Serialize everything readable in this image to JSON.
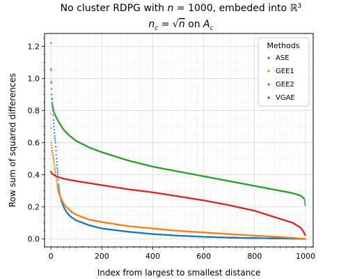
{
  "chart_data": {
    "type": "scatter",
    "title_line1": "No cluster RDPG with n = 1000, embeded into ℝ³",
    "title_line2": "n_c = √n on A_c",
    "xlabel": "Index from largest to smallest distance",
    "ylabel": "Row sum of squared differences",
    "xlim": [
      -25,
      1030
    ],
    "ylim": [
      -0.05,
      1.28
    ],
    "xticks": [
      0,
      200,
      400,
      600,
      800,
      1000
    ],
    "yticks": [
      0.0,
      0.2,
      0.4,
      0.6,
      0.8,
      1.0,
      1.2
    ],
    "grid": true,
    "legend": {
      "title": "Methods",
      "placement": "top-right"
    },
    "n_points": 1000,
    "series": [
      {
        "name": "ASE",
        "color": "#1f77b4",
        "points": [
          [
            0,
            1.22
          ],
          [
            1,
            1.05
          ],
          [
            2,
            0.98
          ],
          [
            3,
            0.9
          ],
          [
            5,
            0.84
          ],
          [
            8,
            0.8
          ],
          [
            10,
            0.74
          ],
          [
            12,
            0.7
          ],
          [
            15,
            0.64
          ],
          [
            18,
            0.6
          ],
          [
            20,
            0.55
          ],
          [
            22,
            0.5
          ],
          [
            25,
            0.44
          ],
          [
            28,
            0.4
          ],
          [
            30,
            0.34
          ],
          [
            35,
            0.28
          ],
          [
            40,
            0.24
          ],
          [
            50,
            0.2
          ],
          [
            60,
            0.17
          ],
          [
            70,
            0.15
          ],
          [
            80,
            0.135
          ],
          [
            100,
            0.115
          ],
          [
            150,
            0.085
          ],
          [
            200,
            0.065
          ],
          [
            300,
            0.045
          ],
          [
            400,
            0.03
          ],
          [
            500,
            0.02
          ],
          [
            600,
            0.013
          ],
          [
            700,
            0.008
          ],
          [
            800,
            0.005
          ],
          [
            900,
            0.003
          ],
          [
            1000,
            0.0
          ]
        ]
      },
      {
        "name": "GEE1",
        "color": "#ff7f0e",
        "points": [
          [
            0,
            0.78
          ],
          [
            2,
            0.6
          ],
          [
            5,
            0.55
          ],
          [
            8,
            0.52
          ],
          [
            12,
            0.48
          ],
          [
            15,
            0.44
          ],
          [
            20,
            0.39
          ],
          [
            25,
            0.33
          ],
          [
            30,
            0.29
          ],
          [
            40,
            0.25
          ],
          [
            50,
            0.22
          ],
          [
            60,
            0.2
          ],
          [
            80,
            0.17
          ],
          [
            100,
            0.15
          ],
          [
            150,
            0.12
          ],
          [
            200,
            0.105
          ],
          [
            300,
            0.08
          ],
          [
            400,
            0.065
          ],
          [
            500,
            0.05
          ],
          [
            600,
            0.04
          ],
          [
            700,
            0.03
          ],
          [
            800,
            0.02
          ],
          [
            900,
            0.012
          ],
          [
            1000,
            0.0
          ]
        ]
      },
      {
        "name": "GEE2",
        "color": "#2ca02c",
        "points": [
          [
            0,
            1.06
          ],
          [
            1,
            0.97
          ],
          [
            3,
            0.9
          ],
          [
            5,
            0.85
          ],
          [
            8,
            0.82
          ],
          [
            12,
            0.79
          ],
          [
            20,
            0.76
          ],
          [
            30,
            0.73
          ],
          [
            50,
            0.68
          ],
          [
            75,
            0.64
          ],
          [
            100,
            0.61
          ],
          [
            150,
            0.57
          ],
          [
            200,
            0.54
          ],
          [
            300,
            0.49
          ],
          [
            400,
            0.45
          ],
          [
            500,
            0.42
          ],
          [
            600,
            0.39
          ],
          [
            700,
            0.36
          ],
          [
            800,
            0.33
          ],
          [
            900,
            0.3
          ],
          [
            950,
            0.285
          ],
          [
            980,
            0.27
          ],
          [
            995,
            0.25
          ],
          [
            1000,
            0.2
          ]
        ]
      },
      {
        "name": "VGAE",
        "color": "#d62728",
        "points": [
          [
            0,
            0.42
          ],
          [
            5,
            0.405
          ],
          [
            10,
            0.4
          ],
          [
            20,
            0.39
          ],
          [
            50,
            0.375
          ],
          [
            100,
            0.36
          ],
          [
            200,
            0.335
          ],
          [
            300,
            0.31
          ],
          [
            400,
            0.29
          ],
          [
            500,
            0.265
          ],
          [
            600,
            0.24
          ],
          [
            700,
            0.21
          ],
          [
            800,
            0.175
          ],
          [
            850,
            0.15
          ],
          [
            900,
            0.125
          ],
          [
            950,
            0.1
          ],
          [
            980,
            0.07
          ],
          [
            990,
            0.05
          ],
          [
            1000,
            0.02
          ]
        ]
      }
    ]
  }
}
